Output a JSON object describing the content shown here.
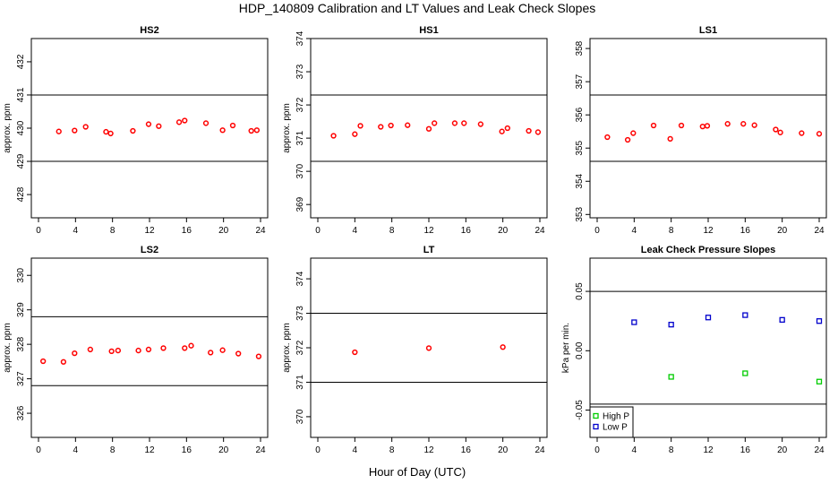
{
  "figure": {
    "title": "HDP_140809  Calibration and LT Values and Leak Check Slopes",
    "xlabel": "Hour of Day (UTC)"
  },
  "chart_data": [
    {
      "type": "scatter",
      "title": "HS2",
      "xlabel": "",
      "ylabel": "approx. ppm",
      "xlim": [
        0,
        24
      ],
      "ylim": [
        427.3,
        432.7
      ],
      "xticks": [
        "0",
        "4",
        "8",
        "12",
        "16",
        "20",
        "24"
      ],
      "yticks": [
        "428",
        "429",
        "430",
        "431",
        "432"
      ],
      "hlines": [
        429.0,
        431.0
      ],
      "series": [
        {
          "marker": "circle",
          "color": "#ff0000",
          "x": [
            2.2,
            3.9,
            5.1,
            7.3,
            7.8,
            10.2,
            11.9,
            13.0,
            15.2,
            15.8,
            18.1,
            19.9,
            21.0,
            23.0,
            23.6
          ],
          "y": [
            429.9,
            429.93,
            430.04,
            429.89,
            429.84,
            429.92,
            430.12,
            430.06,
            430.18,
            430.23,
            430.15,
            429.94,
            430.08,
            429.92,
            429.94
          ]
        }
      ]
    },
    {
      "type": "scatter",
      "title": "HS1",
      "xlabel": "",
      "ylabel": "approx. ppm",
      "xlim": [
        0,
        24
      ],
      "ylim": [
        368.6,
        374.0
      ],
      "xticks": [
        "0",
        "4",
        "8",
        "12",
        "16",
        "20",
        "24"
      ],
      "yticks": [
        "369",
        "370",
        "371",
        "372",
        "373",
        "374"
      ],
      "hlines": [
        370.3,
        372.3
      ],
      "series": [
        {
          "marker": "circle",
          "color": "#ff0000",
          "x": [
            1.7,
            4.0,
            4.6,
            6.8,
            7.9,
            9.7,
            12.0,
            12.6,
            14.8,
            15.8,
            17.6,
            19.9,
            20.5,
            22.8,
            23.8
          ],
          "y": [
            371.07,
            371.12,
            371.37,
            371.34,
            371.38,
            371.39,
            371.28,
            371.45,
            371.45,
            371.45,
            371.42,
            371.2,
            371.3,
            371.22,
            371.18
          ]
        }
      ]
    },
    {
      "type": "scatter",
      "title": "LS1",
      "xlabel": "",
      "ylabel": "",
      "xlim": [
        0,
        24
      ],
      "ylim": [
        352.9,
        358.3
      ],
      "xticks": [
        "0",
        "4",
        "8",
        "12",
        "16",
        "20",
        "24"
      ],
      "yticks": [
        "353",
        "354",
        "355",
        "356",
        "357",
        "358"
      ],
      "hlines": [
        354.6,
        356.6
      ],
      "series": [
        {
          "marker": "circle",
          "color": "#ff0000",
          "x": [
            1.1,
            3.3,
            3.9,
            6.1,
            7.9,
            9.1,
            11.4,
            11.9,
            14.1,
            15.8,
            17.0,
            19.3,
            19.8,
            22.1,
            24.0
          ],
          "y": [
            355.33,
            355.25,
            355.45,
            355.68,
            355.28,
            355.68,
            355.65,
            355.67,
            355.73,
            355.73,
            355.69,
            355.56,
            355.47,
            355.45,
            355.43
          ]
        }
      ]
    },
    {
      "type": "scatter",
      "title": "LS2",
      "xlabel": "",
      "ylabel": "approx. ppm",
      "xlim": [
        0,
        24
      ],
      "ylim": [
        325.3,
        330.5
      ],
      "xticks": [
        "0",
        "4",
        "8",
        "12",
        "16",
        "20",
        "24"
      ],
      "yticks": [
        "326",
        "327",
        "328",
        "329",
        "330"
      ],
      "hlines": [
        326.8,
        328.8
      ],
      "series": [
        {
          "marker": "circle",
          "color": "#ff0000",
          "x": [
            0.5,
            2.7,
            3.9,
            5.6,
            7.9,
            8.6,
            10.8,
            11.9,
            13.5,
            15.8,
            16.5,
            18.6,
            19.9,
            21.6,
            23.8
          ],
          "y": [
            327.51,
            327.49,
            327.74,
            327.85,
            327.8,
            327.82,
            327.82,
            327.85,
            327.89,
            327.89,
            327.96,
            327.76,
            327.83,
            327.73,
            327.65
          ]
        }
      ]
    },
    {
      "type": "scatter",
      "title": "LT",
      "xlabel": "",
      "ylabel": "approx. ppm",
      "xlim": [
        0,
        24
      ],
      "ylim": [
        369.4,
        374.6
      ],
      "xticks": [
        "0",
        "4",
        "8",
        "12",
        "16",
        "20",
        "24"
      ],
      "yticks": [
        "370",
        "371",
        "372",
        "373",
        "374"
      ],
      "hlines": [
        371.0,
        373.0
      ],
      "series": [
        {
          "marker": "circle",
          "color": "#ff0000",
          "x": [
            4.0,
            12.0,
            20.0
          ],
          "y": [
            371.87,
            371.99,
            372.02
          ]
        }
      ]
    },
    {
      "type": "scatter",
      "title": "Leak Check Pressure Slopes",
      "xlabel": "",
      "ylabel": "kPa per min.",
      "xlim": [
        0,
        24
      ],
      "ylim": [
        -0.073,
        0.078
      ],
      "xticks": [
        "0",
        "4",
        "8",
        "12",
        "16",
        "20",
        "24"
      ],
      "yticks": [
        "-0.05",
        "0.00",
        "0.05"
      ],
      "yticks_values": [
        -0.05,
        0.0,
        0.05
      ],
      "hlines": [
        -0.045,
        0.05
      ],
      "legend": {
        "position": "bottom-left",
        "entries": [
          "High P",
          "Low P"
        ]
      },
      "series": [
        {
          "name": "High P",
          "marker": "square",
          "color": "#00cc00",
          "x": [
            8.0,
            16.0,
            24.0
          ],
          "y": [
            -0.022,
            -0.019,
            -0.026
          ]
        },
        {
          "name": "Low P",
          "marker": "square",
          "color": "#0000cc",
          "x": [
            4.0,
            8.0,
            12.0,
            16.0,
            20.0,
            24.0
          ],
          "y": [
            0.024,
            0.022,
            0.028,
            0.03,
            0.026,
            0.025
          ]
        }
      ]
    }
  ]
}
